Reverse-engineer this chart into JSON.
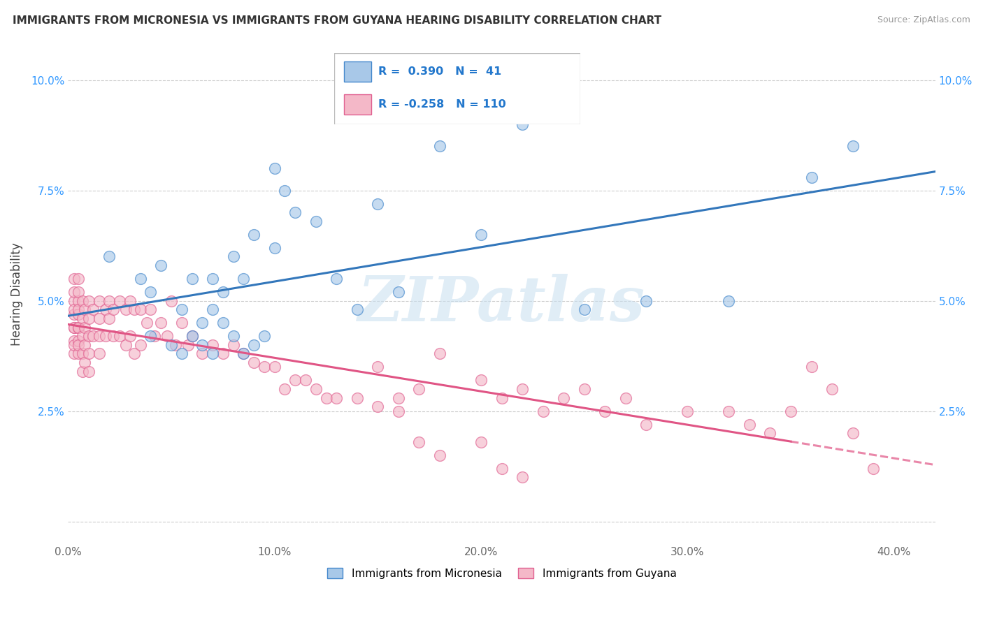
{
  "title": "IMMIGRANTS FROM MICRONESIA VS IMMIGRANTS FROM GUYANA HEARING DISABILITY CORRELATION CHART",
  "source": "Source: ZipAtlas.com",
  "ylabel": "Hearing Disability",
  "xlim": [
    0.0,
    0.42
  ],
  "ylim": [
    -0.005,
    0.108
  ],
  "xticks": [
    0.0,
    0.1,
    0.2,
    0.3,
    0.4
  ],
  "xticklabels": [
    "0.0%",
    "10.0%",
    "20.0%",
    "30.0%",
    "40.0%"
  ],
  "yticks": [
    0.0,
    0.025,
    0.05,
    0.075,
    0.1
  ],
  "yticklabels": [
    "",
    "2.5%",
    "5.0%",
    "7.5%",
    "10.0%"
  ],
  "blue_fill": "#a8c8e8",
  "blue_edge": "#4488cc",
  "pink_fill": "#f4b8c8",
  "pink_edge": "#e06090",
  "blue_line_color": "#3377bb",
  "pink_line_color": "#e05585",
  "label_blue": "Immigrants from Micronesia",
  "label_pink": "Immigrants from Guyana",
  "watermark": "ZIPatlas",
  "blue_scatter_x": [
    0.02,
    0.035,
    0.04,
    0.04,
    0.045,
    0.05,
    0.055,
    0.055,
    0.06,
    0.06,
    0.065,
    0.065,
    0.07,
    0.07,
    0.07,
    0.075,
    0.075,
    0.08,
    0.08,
    0.085,
    0.085,
    0.09,
    0.09,
    0.095,
    0.1,
    0.1,
    0.105,
    0.11,
    0.12,
    0.13,
    0.14,
    0.15,
    0.16,
    0.18,
    0.2,
    0.22,
    0.25,
    0.28,
    0.32,
    0.36,
    0.38
  ],
  "blue_scatter_y": [
    0.06,
    0.055,
    0.052,
    0.042,
    0.058,
    0.04,
    0.048,
    0.038,
    0.055,
    0.042,
    0.045,
    0.04,
    0.055,
    0.048,
    0.038,
    0.052,
    0.045,
    0.06,
    0.042,
    0.055,
    0.038,
    0.065,
    0.04,
    0.042,
    0.062,
    0.08,
    0.075,
    0.07,
    0.068,
    0.055,
    0.048,
    0.072,
    0.052,
    0.085,
    0.065,
    0.09,
    0.048,
    0.05,
    0.05,
    0.078,
    0.085
  ],
  "pink_scatter_x": [
    0.003,
    0.003,
    0.003,
    0.003,
    0.003,
    0.003,
    0.003,
    0.003,
    0.003,
    0.003,
    0.005,
    0.005,
    0.005,
    0.005,
    0.005,
    0.005,
    0.005,
    0.005,
    0.005,
    0.005,
    0.007,
    0.007,
    0.007,
    0.007,
    0.007,
    0.008,
    0.008,
    0.008,
    0.008,
    0.01,
    0.01,
    0.01,
    0.01,
    0.01,
    0.012,
    0.012,
    0.015,
    0.015,
    0.015,
    0.015,
    0.018,
    0.018,
    0.02,
    0.02,
    0.022,
    0.022,
    0.025,
    0.025,
    0.028,
    0.028,
    0.03,
    0.03,
    0.032,
    0.032,
    0.035,
    0.035,
    0.038,
    0.04,
    0.042,
    0.045,
    0.048,
    0.05,
    0.052,
    0.055,
    0.058,
    0.06,
    0.065,
    0.07,
    0.075,
    0.08,
    0.085,
    0.09,
    0.095,
    0.1,
    0.105,
    0.11,
    0.115,
    0.12,
    0.125,
    0.13,
    0.14,
    0.15,
    0.16,
    0.17,
    0.18,
    0.2,
    0.21,
    0.22,
    0.23,
    0.24,
    0.25,
    0.26,
    0.27,
    0.28,
    0.3,
    0.32,
    0.33,
    0.34,
    0.35,
    0.36,
    0.37,
    0.38,
    0.39,
    0.15,
    0.16,
    0.17,
    0.18,
    0.2,
    0.21,
    0.22
  ],
  "pink_scatter_y": [
    0.05,
    0.047,
    0.044,
    0.041,
    0.038,
    0.055,
    0.052,
    0.048,
    0.044,
    0.04,
    0.05,
    0.047,
    0.044,
    0.041,
    0.038,
    0.055,
    0.052,
    0.048,
    0.044,
    0.04,
    0.05,
    0.046,
    0.042,
    0.038,
    0.034,
    0.048,
    0.044,
    0.04,
    0.036,
    0.05,
    0.046,
    0.042,
    0.038,
    0.034,
    0.048,
    0.042,
    0.05,
    0.046,
    0.042,
    0.038,
    0.048,
    0.042,
    0.05,
    0.046,
    0.048,
    0.042,
    0.05,
    0.042,
    0.048,
    0.04,
    0.05,
    0.042,
    0.048,
    0.038,
    0.048,
    0.04,
    0.045,
    0.048,
    0.042,
    0.045,
    0.042,
    0.05,
    0.04,
    0.045,
    0.04,
    0.042,
    0.038,
    0.04,
    0.038,
    0.04,
    0.038,
    0.036,
    0.035,
    0.035,
    0.03,
    0.032,
    0.032,
    0.03,
    0.028,
    0.028,
    0.028,
    0.026,
    0.025,
    0.03,
    0.038,
    0.032,
    0.028,
    0.03,
    0.025,
    0.028,
    0.03,
    0.025,
    0.028,
    0.022,
    0.025,
    0.025,
    0.022,
    0.02,
    0.025,
    0.035,
    0.03,
    0.02,
    0.012,
    0.035,
    0.028,
    0.018,
    0.015,
    0.018,
    0.012,
    0.01
  ],
  "background_color": "#ffffff",
  "grid_color": "#cccccc"
}
